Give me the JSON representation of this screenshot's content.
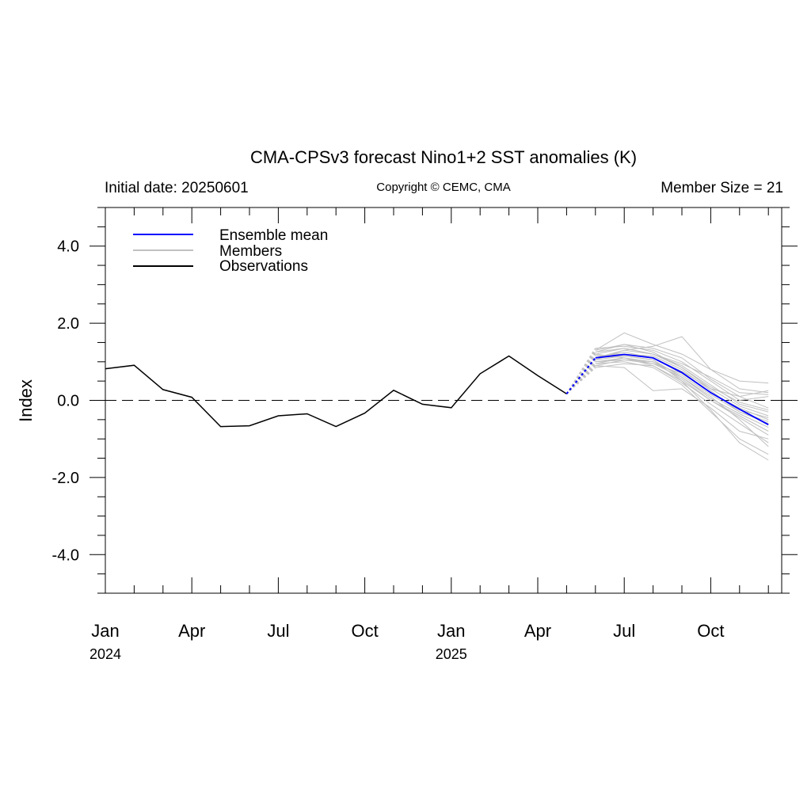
{
  "chart_data": {
    "type": "line",
    "title": "CMA-CPSv3 forecast Nino1+2 SST anomalies (K)",
    "subtitle_left": "Initial date: 20250601",
    "subtitle_center": "Copyright © CEMC, CMA",
    "subtitle_right": "Member Size = 21",
    "ylabel": "Index",
    "ylim": [
      -5,
      5
    ],
    "yticks": [
      {
        "value": 4,
        "label": "4.0"
      },
      {
        "value": 2,
        "label": "2.0"
      },
      {
        "value": 0,
        "label": "0.0"
      },
      {
        "value": -2,
        "label": "-2.0"
      },
      {
        "value": -4,
        "label": "-4.0"
      }
    ],
    "xlim": [
      "2024-01",
      "2025-12"
    ],
    "xticks": [
      {
        "month": "2024-01",
        "label": "Jan",
        "year": "2024"
      },
      {
        "month": "2024-04",
        "label": "Apr"
      },
      {
        "month": "2024-07",
        "label": "Jul"
      },
      {
        "month": "2024-10",
        "label": "Oct"
      },
      {
        "month": "2025-01",
        "label": "Jan",
        "year": "2025"
      },
      {
        "month": "2025-04",
        "label": "Apr"
      },
      {
        "month": "2025-07",
        "label": "Jul"
      },
      {
        "month": "2025-10",
        "label": "Oct"
      }
    ],
    "legend": {
      "placement": "top-left",
      "entries": [
        {
          "label": "Ensemble mean",
          "color": "#0000ff"
        },
        {
          "label": "Members",
          "color": "#c0c0c0"
        },
        {
          "label": "Observations",
          "color": "#000000"
        }
      ]
    },
    "observations": {
      "color": "#000000",
      "x": [
        "2024-01",
        "2024-02",
        "2024-03",
        "2024-04",
        "2024-05",
        "2024-06",
        "2024-07",
        "2024-08",
        "2024-09",
        "2024-10",
        "2024-11",
        "2024-12",
        "2025-01",
        "2025-02",
        "2025-03",
        "2025-04",
        "2025-05"
      ],
      "y": [
        0.82,
        0.91,
        0.28,
        0.08,
        -0.68,
        -0.66,
        -0.4,
        -0.35,
        -0.68,
        -0.33,
        0.26,
        -0.1,
        -0.19,
        0.69,
        1.15,
        0.64,
        0.17
      ]
    },
    "ensemble_mean": {
      "color": "#0000ff",
      "x": [
        "2025-05",
        "2025-06",
        "2025-07",
        "2025-08",
        "2025-09",
        "2025-10",
        "2025-11",
        "2025-12"
      ],
      "y": [
        0.17,
        1.1,
        1.19,
        1.1,
        0.72,
        0.2,
        -0.23,
        -0.63
      ]
    },
    "members": {
      "color": "#c0c0c0",
      "x": [
        "2025-05",
        "2025-06",
        "2025-07",
        "2025-08",
        "2025-09",
        "2025-10",
        "2025-11",
        "2025-12"
      ],
      "values": [
        [
          0.17,
          1.3,
          1.75,
          1.45,
          1.2,
          0.8,
          0.3,
          0.2
        ],
        [
          0.17,
          1.1,
          1.3,
          1.4,
          1.65,
          0.8,
          0.5,
          0.45
        ],
        [
          0.17,
          0.95,
          1.1,
          0.9,
          0.5,
          0.0,
          -0.45,
          -0.9
        ],
        [
          0.17,
          1.25,
          1.45,
          1.25,
          0.85,
          0.3,
          0.1,
          0.25
        ],
        [
          0.17,
          1.05,
          1.15,
          1.05,
          0.6,
          0.1,
          -0.5,
          -1.2
        ],
        [
          0.17,
          0.9,
          0.85,
          0.25,
          0.3,
          -0.2,
          -0.8,
          -1.0
        ],
        [
          0.17,
          1.2,
          1.35,
          1.2,
          0.9,
          0.4,
          -0.1,
          -0.3
        ],
        [
          0.17,
          1.15,
          1.2,
          1.15,
          0.8,
          0.25,
          -0.3,
          -0.6
        ],
        [
          0.17,
          1.0,
          1.05,
          1.0,
          0.55,
          0.0,
          -0.4,
          -0.8
        ],
        [
          0.17,
          1.35,
          1.4,
          1.3,
          1.0,
          0.5,
          0.0,
          0.1
        ],
        [
          0.17,
          0.85,
          0.95,
          0.9,
          0.45,
          -0.1,
          -0.6,
          -1.1
        ],
        [
          0.17,
          1.1,
          1.25,
          1.1,
          0.7,
          0.2,
          -0.2,
          -0.5
        ],
        [
          0.17,
          1.2,
          1.1,
          0.95,
          0.6,
          0.05,
          -0.35,
          -0.7
        ],
        [
          0.17,
          1.05,
          1.3,
          1.2,
          0.95,
          0.6,
          0.2,
          0.15
        ],
        [
          0.17,
          1.3,
          1.45,
          1.35,
          1.1,
          0.55,
          0.1,
          -0.2
        ],
        [
          0.17,
          0.95,
          1.0,
          0.85,
          0.4,
          -0.3,
          -1.0,
          -1.4
        ],
        [
          0.17,
          1.15,
          1.2,
          1.1,
          0.75,
          0.3,
          -0.15,
          -0.4
        ],
        [
          0.17,
          1.0,
          1.1,
          1.0,
          0.65,
          0.15,
          -0.3,
          -0.55
        ],
        [
          0.17,
          1.25,
          1.35,
          1.2,
          0.85,
          0.35,
          -0.05,
          -0.25
        ],
        [
          0.17,
          1.1,
          1.15,
          1.05,
          0.5,
          -0.25,
          -1.1,
          -1.55
        ],
        [
          0.17,
          0.9,
          1.05,
          0.95,
          0.7,
          0.2,
          -0.25,
          -0.45
        ]
      ]
    }
  }
}
